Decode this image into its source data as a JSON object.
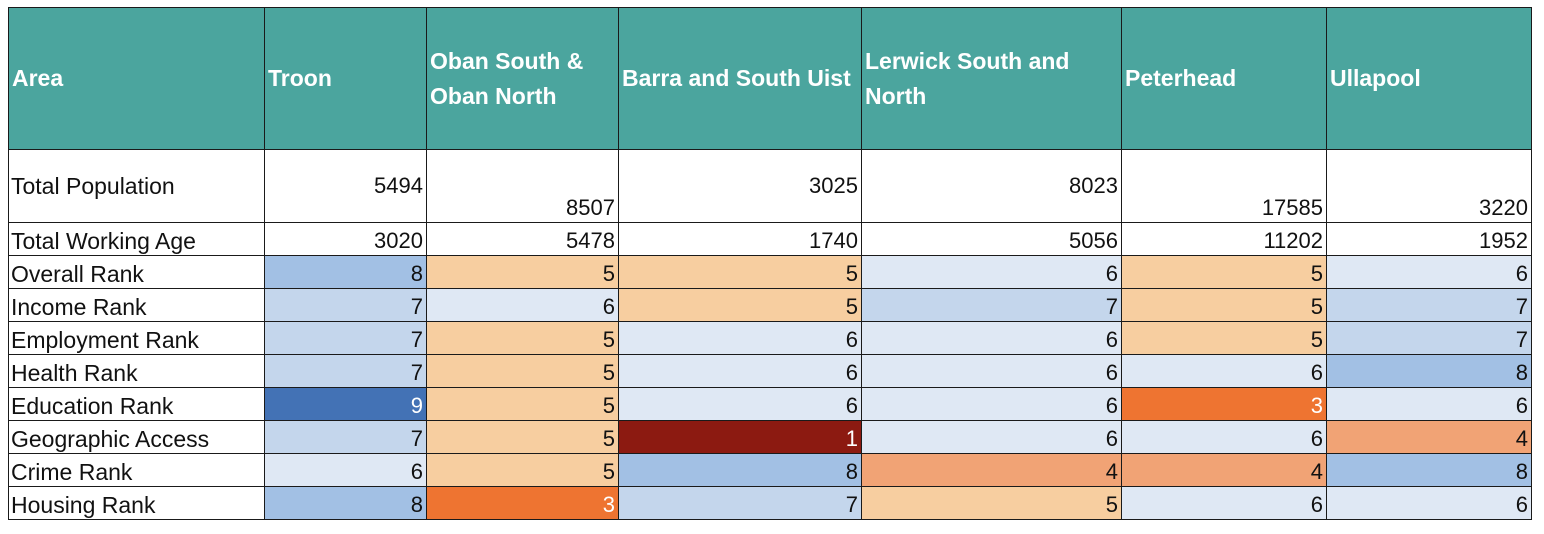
{
  "table": {
    "headers": [
      "Area",
      "Troon",
      "Oban South & Oban North",
      "Barra and South Uist",
      "Lerwick South and North",
      "Peterhead",
      "Ullapool"
    ],
    "rows": [
      {
        "label": "Total Population",
        "values": [
          "5494",
          "8507",
          "3025",
          "8023",
          "17585",
          "3220"
        ],
        "colors": [
          "#ffffff",
          "#ffffff",
          "#ffffff",
          "#ffffff",
          "#ffffff",
          "#ffffff"
        ],
        "valign": [
          "top",
          "bot",
          "top",
          "top",
          "bot",
          "bot"
        ]
      },
      {
        "label": "Total Working Age",
        "values": [
          "3020",
          "5478",
          "1740",
          "5056",
          "11202",
          "1952"
        ],
        "colors": [
          "#ffffff",
          "#ffffff",
          "#ffffff",
          "#ffffff",
          "#ffffff",
          "#ffffff"
        ]
      },
      {
        "label": "Overall Rank",
        "values": [
          "8",
          "5",
          "5",
          "6",
          "5",
          "6"
        ],
        "colors": [
          "#a2c0e4",
          "#f7ceA0",
          "#f7cea0",
          "#dfe8f4",
          "#f7cea0",
          "#dfe8f4"
        ]
      },
      {
        "label": "Income Rank",
        "values": [
          "7",
          "6",
          "5",
          "7",
          "5",
          "7"
        ],
        "colors": [
          "#c4d6ec",
          "#dfe8f4",
          "#f7cea0",
          "#c4d6ec",
          "#f7cea0",
          "#c4d6ec"
        ]
      },
      {
        "label": "Employment Rank",
        "values": [
          "7",
          "5",
          "6",
          "6",
          "5",
          "7"
        ],
        "colors": [
          "#c4d6ec",
          "#f7cea0",
          "#dfe8f4",
          "#dfe8f4",
          "#f7cea0",
          "#c4d6ec"
        ]
      },
      {
        "label": "Health Rank",
        "values": [
          "7",
          "5",
          "6",
          "6",
          "6",
          "8"
        ],
        "colors": [
          "#c4d6ec",
          "#f7cea0",
          "#dfe8f4",
          "#dfe8f4",
          "#dfe8f4",
          "#a2c0e4"
        ]
      },
      {
        "label": "Education Rank",
        "values": [
          "9",
          "5",
          "6",
          "6",
          "3",
          "6"
        ],
        "colors": [
          "#4372b5",
          "#f7cea0",
          "#dfe8f4",
          "#dfe8f4",
          "#ee7431",
          "#dfe8f4"
        ]
      },
      {
        "label": "Geographic Access",
        "values": [
          "7",
          "5",
          "1",
          "6",
          "6",
          "4"
        ],
        "colors": [
          "#c4d6ec",
          "#f7cea0",
          "#8c1a11",
          "#dfe8f4",
          "#dfe8f4",
          "#f1a375"
        ]
      },
      {
        "label": "Crime Rank",
        "values": [
          "6",
          "5",
          "8",
          "4",
          "4",
          "8"
        ],
        "colors": [
          "#dfe8f4",
          "#f7cea0",
          "#a2c0e4",
          "#f1a375",
          "#f1a375",
          "#a2c0e4"
        ]
      },
      {
        "label": "Housing Rank",
        "values": [
          "8",
          "3",
          "7",
          "5",
          "6",
          "6"
        ],
        "colors": [
          "#a2c0e4",
          "#ee7431",
          "#c4d6ec",
          "#f7cea0",
          "#dfe8f4",
          "#dfe8f4"
        ]
      }
    ],
    "header_color": "#4ba59e",
    "light_text_fills": [
      "#4372b5",
      "#ee7431",
      "#8c1a11"
    ]
  }
}
